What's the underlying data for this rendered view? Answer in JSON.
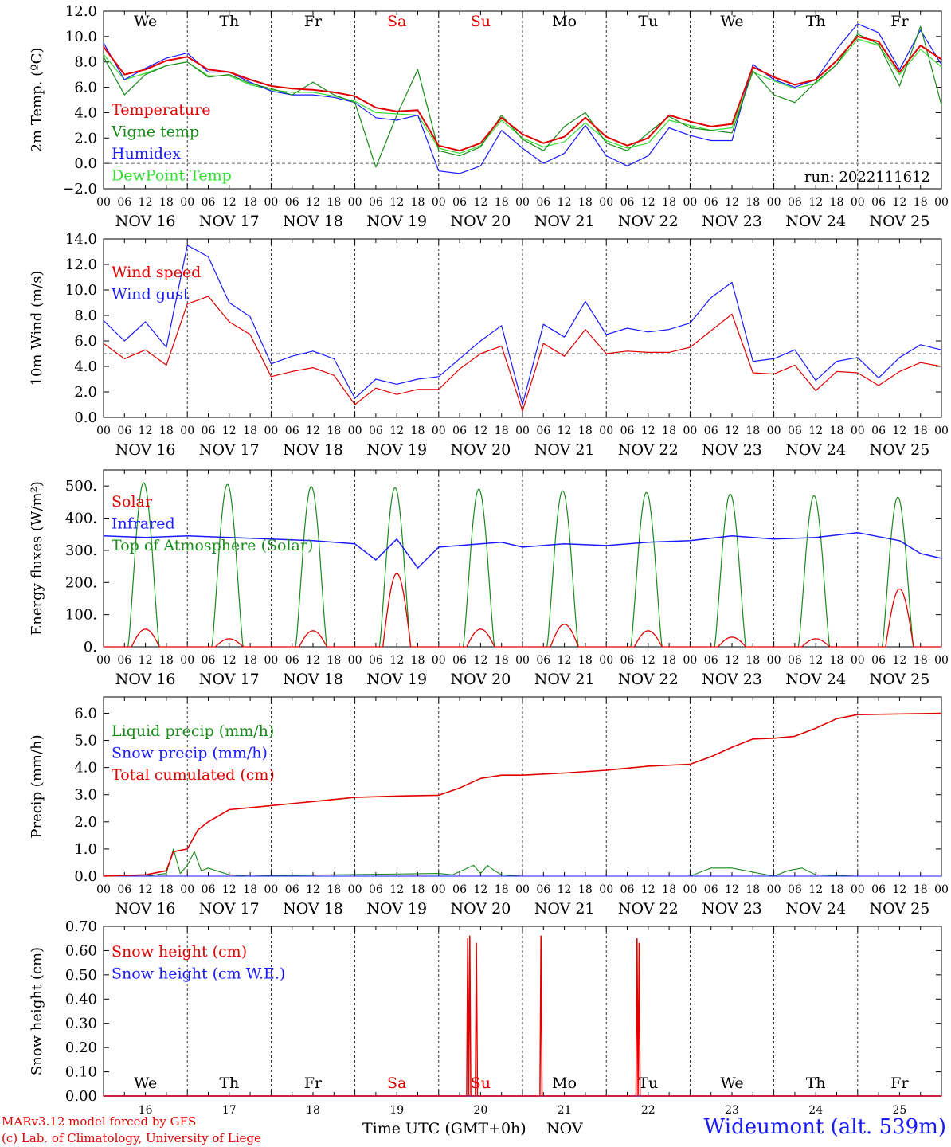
{
  "meta": {
    "run_label": "run: 2022111612",
    "station": "Wideumont (alt. 539m)",
    "credit_1": "MARv3.12 model forced by GFS",
    "credit_2": "(c) Lab. of Climatology, University of Liege",
    "time_axis_label": "Time UTC (GMT+0h)",
    "month_label": "NOV"
  },
  "colors": {
    "red": "#e00000",
    "green": "#1a8a1a",
    "blue": "#1a1aff",
    "light_green": "#33dd33",
    "weekend": "#e00000",
    "weekday": "#000000"
  },
  "days": {
    "weekday_labels": [
      "We",
      "Th",
      "Fr",
      "Sa",
      "Su",
      "Mo",
      "Tu",
      "We",
      "Th",
      "Fr"
    ],
    "weekend_flags": [
      false,
      false,
      false,
      true,
      true,
      false,
      false,
      false,
      false,
      false
    ],
    "date_labels": [
      "NOV 16",
      "NOV 17",
      "NOV 18",
      "NOV 19",
      "NOV 20",
      "NOV 21",
      "NOV 22",
      "NOV 23",
      "NOV 24",
      "NOV 25"
    ],
    "day_numbers": [
      "16",
      "17",
      "18",
      "19",
      "20",
      "21",
      "22",
      "23",
      "24",
      "25"
    ],
    "hour_ticks": [
      "00",
      "06",
      "12",
      "18"
    ],
    "final_tick": "00"
  },
  "chart_data": [
    {
      "type": "line",
      "ylabel": "2m Temp. (ºC)",
      "ylim": [
        -2,
        12
      ],
      "yticks": [
        "12.0",
        "10.0",
        "8.0",
        "6.0",
        "4.0",
        "2.0",
        "0.0",
        "−2.0"
      ],
      "ytick_values": [
        12,
        10,
        8,
        6,
        4,
        2,
        0,
        -2
      ],
      "ref_line": 0,
      "x_unit": "hours since NOV 16 00 UTC",
      "series": [
        {
          "name": "Temperature",
          "color": "red",
          "x": [
            0,
            6,
            12,
            18,
            24,
            30,
            36,
            42,
            48,
            54,
            60,
            66,
            72,
            78,
            84,
            90,
            96,
            102,
            108,
            114,
            120,
            126,
            132,
            138,
            144,
            150,
            156,
            162,
            168,
            174,
            180,
            186,
            192,
            198,
            204,
            210,
            216,
            222,
            228,
            234,
            240
          ],
          "y": [
            9.2,
            7.0,
            7.4,
            8.1,
            8.4,
            7.4,
            7.2,
            6.6,
            6.1,
            5.9,
            5.8,
            5.6,
            5.3,
            4.4,
            4.1,
            4.2,
            1.4,
            1.0,
            1.6,
            3.6,
            2.3,
            1.6,
            2.1,
            3.6,
            2.1,
            1.4,
            2.0,
            3.8,
            3.3,
            2.9,
            3.1,
            7.6,
            6.8,
            6.2,
            6.6,
            8.1,
            10.0,
            9.6,
            7.2,
            9.3,
            8.2
          ]
        },
        {
          "name": "Vigne temp",
          "color": "green",
          "x": [
            0,
            6,
            12,
            18,
            24,
            30,
            36,
            42,
            48,
            54,
            60,
            66,
            72,
            78,
            84,
            90,
            96,
            102,
            108,
            114,
            120,
            126,
            132,
            138,
            144,
            150,
            156,
            162,
            168,
            174,
            180,
            186,
            192,
            198,
            204,
            210,
            216,
            222,
            228,
            234,
            240
          ],
          "y": [
            8.4,
            5.4,
            7.0,
            7.7,
            8.0,
            6.8,
            7.0,
            6.3,
            5.9,
            5.4,
            6.4,
            5.4,
            4.8,
            -0.3,
            3.8,
            7.4,
            1.0,
            0.6,
            1.3,
            3.8,
            1.9,
            1.0,
            2.9,
            4.0,
            1.6,
            1.0,
            2.4,
            3.7,
            2.8,
            2.6,
            2.4,
            7.3,
            5.4,
            4.8,
            6.4,
            7.8,
            10.2,
            9.4,
            6.1,
            10.8,
            4.6
          ]
        },
        {
          "name": "Humidex",
          "color": "blue",
          "x": [
            0,
            6,
            12,
            18,
            24,
            30,
            36,
            42,
            48,
            54,
            60,
            66,
            72,
            78,
            84,
            90,
            96,
            102,
            108,
            114,
            120,
            126,
            132,
            138,
            144,
            150,
            156,
            162,
            168,
            174,
            180,
            186,
            192,
            198,
            204,
            210,
            216,
            222,
            228,
            234,
            240
          ],
          "y": [
            9.5,
            6.6,
            7.5,
            8.3,
            8.7,
            7.2,
            7.2,
            6.4,
            5.7,
            5.4,
            5.4,
            5.2,
            4.8,
            3.6,
            3.4,
            3.8,
            -0.6,
            -0.8,
            -0.2,
            2.6,
            1.2,
            0.0,
            0.8,
            3.0,
            0.6,
            -0.2,
            0.6,
            2.8,
            2.2,
            1.8,
            1.8,
            7.8,
            6.6,
            6.0,
            6.6,
            9.0,
            11.0,
            10.3,
            7.4,
            10.5,
            7.8
          ]
        },
        {
          "name": "DewPoint Temp",
          "color": "light_green",
          "x": [
            0,
            6,
            12,
            18,
            24,
            30,
            36,
            42,
            48,
            54,
            60,
            66,
            72,
            78,
            84,
            90,
            96,
            102,
            108,
            114,
            120,
            126,
            132,
            138,
            144,
            150,
            156,
            162,
            168,
            174,
            180,
            186,
            192,
            198,
            204,
            210,
            216,
            222,
            228,
            234,
            240
          ],
          "y": [
            8.6,
            6.6,
            7.1,
            7.7,
            8.0,
            6.9,
            6.9,
            6.2,
            5.8,
            5.6,
            5.6,
            5.3,
            4.9,
            4.0,
            3.9,
            3.8,
            1.2,
            0.8,
            1.4,
            3.4,
            2.0,
            1.3,
            1.7,
            3.2,
            1.8,
            1.2,
            1.6,
            3.4,
            3.0,
            2.6,
            2.8,
            7.2,
            6.5,
            5.9,
            6.3,
            7.8,
            9.8,
            9.3,
            7.0,
            9.0,
            7.6
          ]
        }
      ]
    },
    {
      "type": "line",
      "ylabel": "10m Wind (m/s)",
      "ylim": [
        0,
        14
      ],
      "yticks": [
        "14.0",
        "12.0",
        "10.0",
        "8.0",
        "6.0",
        "4.0",
        "2.0",
        "0.0"
      ],
      "ytick_values": [
        14,
        12,
        10,
        8,
        6,
        4,
        2,
        0
      ],
      "ref_line": 5,
      "x_unit": "hours since NOV 16 00 UTC",
      "series": [
        {
          "name": "Wind speed",
          "color": "red",
          "x": [
            0,
            6,
            12,
            18,
            24,
            30,
            36,
            42,
            48,
            54,
            60,
            66,
            72,
            78,
            84,
            90,
            96,
            102,
            108,
            114,
            120,
            126,
            132,
            138,
            144,
            150,
            156,
            162,
            168,
            174,
            180,
            186,
            192,
            198,
            204,
            210,
            216,
            222,
            228,
            234,
            240
          ],
          "y": [
            5.8,
            4.6,
            5.3,
            4.1,
            8.9,
            9.5,
            7.5,
            6.5,
            3.2,
            3.6,
            3.9,
            3.3,
            1.0,
            2.3,
            1.8,
            2.2,
            2.2,
            3.8,
            5.0,
            5.6,
            0.5,
            5.8,
            4.8,
            6.9,
            5.0,
            5.2,
            5.1,
            5.1,
            5.5,
            6.8,
            8.1,
            3.5,
            3.4,
            4.1,
            2.1,
            3.6,
            3.5,
            2.5,
            3.6,
            4.3,
            4.0
          ]
        },
        {
          "name": "Wind gust",
          "color": "blue",
          "x": [
            0,
            6,
            12,
            18,
            24,
            30,
            36,
            42,
            48,
            54,
            60,
            66,
            72,
            78,
            84,
            90,
            96,
            102,
            108,
            114,
            120,
            126,
            132,
            138,
            144,
            150,
            156,
            162,
            168,
            174,
            180,
            186,
            192,
            198,
            204,
            210,
            216,
            222,
            228,
            234,
            240
          ],
          "y": [
            7.6,
            6.0,
            7.5,
            5.5,
            13.5,
            12.6,
            9.0,
            7.9,
            4.2,
            4.8,
            5.2,
            4.6,
            1.5,
            3.0,
            2.6,
            3.0,
            3.2,
            4.6,
            6.0,
            7.2,
            1.0,
            7.3,
            6.3,
            9.1,
            6.5,
            7.0,
            6.7,
            6.9,
            7.4,
            9.4,
            10.6,
            4.4,
            4.6,
            5.3,
            2.9,
            4.4,
            4.7,
            3.1,
            4.7,
            5.7,
            5.3
          ]
        }
      ]
    },
    {
      "type": "line",
      "ylabel": "Energy fluxes (W/m²)",
      "ylim": [
        0,
        550
      ],
      "yticks": [
        "500.",
        "400.",
        "300.",
        "200.",
        "100.",
        "0."
      ],
      "ytick_values": [
        500,
        400,
        300,
        200,
        100,
        0
      ],
      "ref_line": null,
      "x_unit": "hours since NOV 16 00 UTC",
      "toa_peaks": [
        510,
        505,
        498,
        495,
        490,
        485,
        480,
        475,
        470,
        465
      ],
      "solar_peaks": [
        55,
        25,
        50,
        228,
        55,
        70,
        50,
        30,
        25,
        180
      ],
      "series": [
        {
          "name": "Solar",
          "color": "red"
        },
        {
          "name": "Infrared",
          "color": "blue",
          "x": [
            0,
            12,
            24,
            36,
            48,
            60,
            66,
            72,
            78,
            84,
            90,
            96,
            102,
            108,
            114,
            120,
            132,
            144,
            156,
            168,
            180,
            192,
            204,
            216,
            228,
            234,
            240
          ],
          "y": [
            345,
            340,
            345,
            340,
            335,
            330,
            325,
            320,
            270,
            335,
            245,
            310,
            315,
            320,
            325,
            310,
            320,
            315,
            325,
            330,
            345,
            335,
            340,
            355,
            330,
            290,
            275
          ]
        },
        {
          "name": "Top of Atmosphere (Solar)",
          "color": "green"
        }
      ]
    },
    {
      "type": "line",
      "ylabel": "Precip (mm/h)",
      "ylim": [
        0,
        6.6
      ],
      "yticks": [
        "6.0",
        "5.0",
        "4.0",
        "3.0",
        "2.0",
        "1.0",
        "0.0"
      ],
      "ytick_values": [
        6,
        5,
        4,
        3,
        2,
        1,
        0
      ],
      "ref_line": null,
      "x_unit": "hours since NOV 16 00 UTC",
      "series": [
        {
          "name": "Liquid precip (mm/h)",
          "color": "green",
          "x": [
            0,
            12,
            18,
            20,
            22,
            24,
            26,
            28,
            30,
            36,
            42,
            48,
            96,
            100,
            106,
            108,
            110,
            112,
            114,
            120,
            168,
            174,
            180,
            192,
            196,
            200,
            204,
            216,
            240
          ],
          "y": [
            0,
            0,
            0.1,
            1.0,
            0.1,
            0.4,
            0.9,
            0.2,
            0.3,
            0.05,
            0,
            0.02,
            0.1,
            0.05,
            0.4,
            0.1,
            0.4,
            0.2,
            0.05,
            0,
            0,
            0.3,
            0.3,
            0,
            0.2,
            0.3,
            0.05,
            0,
            0
          ]
        },
        {
          "name": "Snow precip (mm/h)",
          "color": "blue",
          "x": [
            0,
            240
          ],
          "y": [
            0,
            0
          ]
        },
        {
          "name": "Total cumulated (cm)",
          "color": "red",
          "x": [
            0,
            12,
            18,
            20,
            24,
            27,
            30,
            36,
            48,
            60,
            72,
            84,
            96,
            102,
            108,
            114,
            120,
            132,
            144,
            156,
            168,
            174,
            180,
            186,
            192,
            198,
            204,
            210,
            216,
            240
          ],
          "y": [
            0,
            0.05,
            0.2,
            0.9,
            1.0,
            1.7,
            2.0,
            2.45,
            2.6,
            2.75,
            2.9,
            2.95,
            2.98,
            3.25,
            3.6,
            3.72,
            3.72,
            3.8,
            3.9,
            4.05,
            4.12,
            4.4,
            4.75,
            5.05,
            5.08,
            5.15,
            5.45,
            5.8,
            5.95,
            6.0
          ]
        }
      ]
    },
    {
      "type": "line",
      "ylabel": "Snow height (cm)",
      "ylim": [
        0,
        0.7
      ],
      "yticks": [
        "0.70",
        "0.60",
        "0.50",
        "0.40",
        "0.30",
        "0.20",
        "0.10",
        "0.00"
      ],
      "ytick_values": [
        0.7,
        0.6,
        0.5,
        0.4,
        0.3,
        0.2,
        0.1,
        0
      ],
      "ref_line": null,
      "x_unit": "hours since NOV 16 00 UTC",
      "series": [
        {
          "name": "Snow height (cm)",
          "color": "red",
          "x": [
            0,
            104.0,
            104.3,
            104.6,
            104.9,
            105.2,
            106.5,
            106.8,
            107.1,
            125.0,
            125.3,
            125.6,
            152.5,
            152.8,
            153.1,
            153.4,
            153.7,
            240
          ],
          "y": [
            0,
            0,
            0.65,
            0,
            0.66,
            0,
            0,
            0.63,
            0,
            0,
            0.66,
            0,
            0,
            0.65,
            0,
            0.63,
            0,
            0
          ]
        },
        {
          "name": "Snow height (cm W.E.)",
          "color": "blue",
          "x": [
            0,
            240
          ],
          "y": [
            0,
            0
          ]
        }
      ]
    }
  ]
}
